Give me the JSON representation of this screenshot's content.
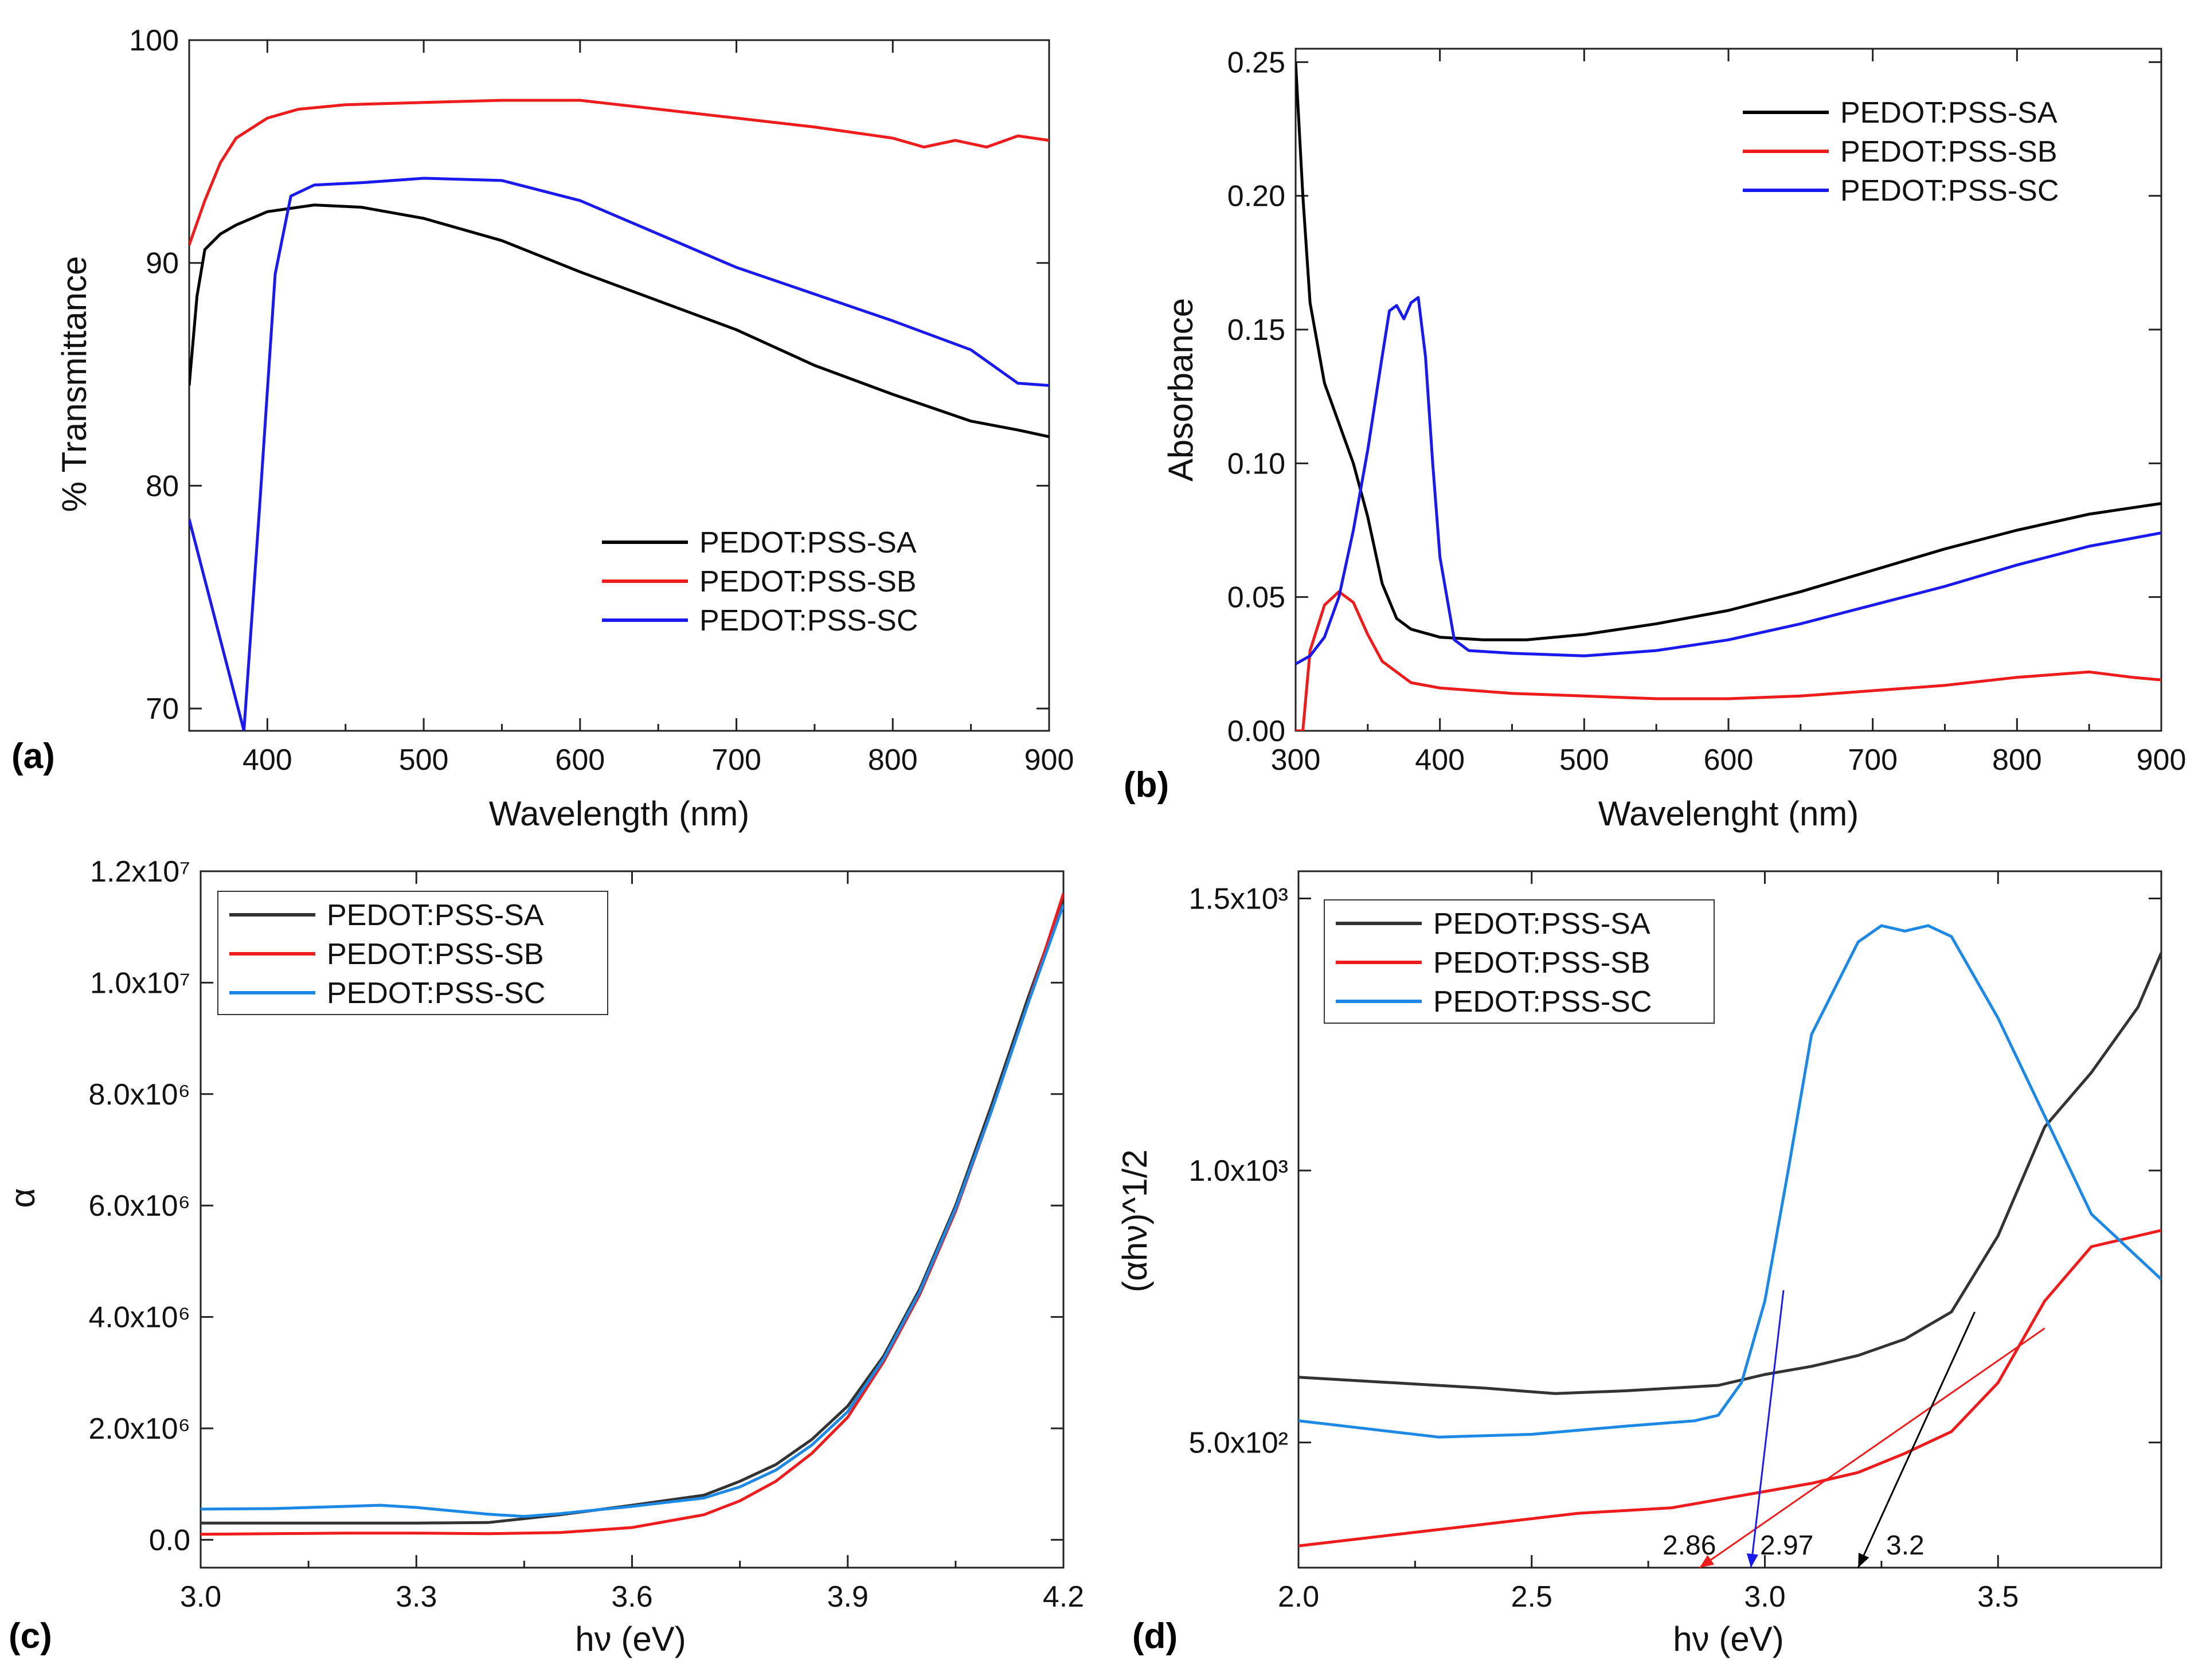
{
  "colors": {
    "SA": "#000000",
    "SB": "#ee1c1c",
    "SC": "#1a1aee",
    "SC_light": "#1e88e5"
  },
  "chart_data": [
    {
      "id": "a",
      "type": "line",
      "panel_label": "(a)",
      "xlabel": "Wavelength (nm)",
      "ylabel": "% Transmittance",
      "xlim": [
        350,
        900
      ],
      "ylim": [
        69,
        100
      ],
      "xticks": [
        "400",
        "500",
        "600",
        "700",
        "800",
        "900"
      ],
      "yticks": [
        "70",
        "80",
        "90",
        "100"
      ],
      "legend": [
        "PEDOT:PSS-SA",
        "PEDOT:PSS-SB",
        "PEDOT:PSS-SC"
      ],
      "series": [
        {
          "name": "PEDOT:PSS-SA",
          "color": "#000000",
          "x": [
            350,
            355,
            360,
            370,
            380,
            400,
            430,
            460,
            500,
            550,
            600,
            650,
            700,
            750,
            800,
            850,
            880,
            900
          ],
          "y": [
            84.5,
            88.5,
            90.6,
            91.3,
            91.7,
            92.3,
            92.6,
            92.5,
            92.0,
            91.0,
            89.6,
            88.3,
            87.0,
            85.4,
            84.1,
            82.9,
            82.5,
            82.2
          ]
        },
        {
          "name": "PEDOT:PSS-SB",
          "color": "#ee1c1c",
          "x": [
            350,
            360,
            370,
            380,
            400,
            420,
            450,
            500,
            550,
            600,
            650,
            700,
            750,
            800,
            820,
            840,
            860,
            880,
            900
          ],
          "y": [
            90.8,
            92.8,
            94.5,
            95.6,
            96.5,
            96.9,
            97.1,
            97.2,
            97.3,
            97.3,
            96.9,
            96.5,
            96.1,
            95.6,
            95.2,
            95.5,
            95.2,
            95.7,
            95.5
          ]
        },
        {
          "name": "PEDOT:PSS-SC",
          "color": "#1a1aee",
          "x": [
            350,
            385,
            395,
            405,
            415,
            430,
            460,
            500,
            550,
            600,
            650,
            700,
            750,
            800,
            850,
            880,
            900
          ],
          "y": [
            78.5,
            69.0,
            79.0,
            89.5,
            93.0,
            93.5,
            93.6,
            93.8,
            93.7,
            92.8,
            91.3,
            89.8,
            88.6,
            87.4,
            86.1,
            84.6,
            84.5
          ]
        }
      ]
    },
    {
      "id": "b",
      "type": "line",
      "panel_label": "(b)",
      "xlabel": "Wavelenght (nm)",
      "ylabel": "Absorbance",
      "xlim": [
        300,
        900
      ],
      "ylim": [
        0.0,
        0.255
      ],
      "xticks": [
        "300",
        "400",
        "500",
        "600",
        "700",
        "800",
        "900"
      ],
      "yticks": [
        "0.00",
        "0.05",
        "0.10",
        "0.15",
        "0.20",
        "0.25"
      ],
      "legend": [
        "PEDOT:PSS-SA",
        "PEDOT:PSS-SB",
        "PEDOT:PSS-SC"
      ],
      "series": [
        {
          "name": "PEDOT:PSS-SA",
          "color": "#000000",
          "x": [
            300,
            305,
            310,
            320,
            330,
            340,
            350,
            360,
            370,
            380,
            400,
            430,
            460,
            500,
            550,
            600,
            650,
            700,
            750,
            800,
            850,
            900
          ],
          "y": [
            0.25,
            0.2,
            0.16,
            0.13,
            0.115,
            0.1,
            0.08,
            0.055,
            0.042,
            0.038,
            0.035,
            0.034,
            0.034,
            0.036,
            0.04,
            0.045,
            0.052,
            0.06,
            0.068,
            0.075,
            0.081,
            0.085
          ]
        },
        {
          "name": "PEDOT:PSS-SB",
          "color": "#ee1c1c",
          "x": [
            300,
            305,
            310,
            320,
            330,
            340,
            350,
            360,
            380,
            400,
            450,
            500,
            550,
            600,
            650,
            700,
            750,
            800,
            850,
            880,
            900
          ],
          "y": [
            0.0,
            0.0,
            0.03,
            0.047,
            0.052,
            0.048,
            0.036,
            0.026,
            0.018,
            0.016,
            0.014,
            0.013,
            0.012,
            0.012,
            0.013,
            0.015,
            0.017,
            0.02,
            0.022,
            0.02,
            0.019
          ]
        },
        {
          "name": "PEDOT:PSS-SC",
          "color": "#1a1aee",
          "x": [
            300,
            310,
            320,
            330,
            340,
            350,
            360,
            365,
            370,
            375,
            380,
            385,
            390,
            395,
            400,
            410,
            420,
            450,
            500,
            550,
            600,
            650,
            700,
            750,
            800,
            850,
            900
          ],
          "y": [
            0.025,
            0.028,
            0.035,
            0.05,
            0.075,
            0.105,
            0.14,
            0.157,
            0.159,
            0.154,
            0.16,
            0.162,
            0.14,
            0.1,
            0.065,
            0.034,
            0.03,
            0.029,
            0.028,
            0.03,
            0.034,
            0.04,
            0.047,
            0.054,
            0.062,
            0.069,
            0.074
          ]
        }
      ]
    },
    {
      "id": "c",
      "type": "line",
      "panel_label": "(c)",
      "xlabel": "hν (eV)",
      "ylabel": "α",
      "xlim": [
        3.0,
        4.2
      ],
      "ylim": [
        -500000,
        12000000
      ],
      "xticks": [
        "3.0",
        "3.3",
        "3.6",
        "3.9",
        "4.2"
      ],
      "yticks": [
        "0.0",
        "2.0x10⁶",
        "4.0x10⁶",
        "6.0x10⁶",
        "8.0x10⁶",
        "1.0x10⁷",
        "1.2x10⁷"
      ],
      "legend": [
        "PEDOT:PSS-SA",
        "PEDOT:PSS-SB",
        "PEDOT:PSS-SC"
      ],
      "series": [
        {
          "name": "PEDOT:PSS-SA",
          "color": "#333333",
          "x": [
            3.0,
            3.1,
            3.2,
            3.3,
            3.4,
            3.5,
            3.6,
            3.7,
            3.75,
            3.8,
            3.85,
            3.9,
            3.95,
            4.0,
            4.05,
            4.1,
            4.15,
            4.2
          ],
          "y": [
            300000,
            300000,
            300000,
            300000,
            310000,
            450000,
            620000,
            800000,
            1050000,
            1350000,
            1800000,
            2400000,
            3300000,
            4500000,
            6000000,
            7800000,
            9700000,
            11500000
          ]
        },
        {
          "name": "PEDOT:PSS-SB",
          "color": "#ee1c1c",
          "x": [
            3.0,
            3.1,
            3.2,
            3.3,
            3.4,
            3.5,
            3.6,
            3.7,
            3.75,
            3.8,
            3.85,
            3.9,
            3.95,
            4.0,
            4.05,
            4.1,
            4.15,
            4.2
          ],
          "y": [
            100000,
            110000,
            120000,
            120000,
            110000,
            130000,
            220000,
            450000,
            700000,
            1050000,
            1550000,
            2200000,
            3200000,
            4400000,
            5900000,
            7700000,
            9600000,
            11600000
          ]
        },
        {
          "name": "PEDOT:PSS-SC",
          "color": "#1e88e5",
          "x": [
            3.0,
            3.1,
            3.2,
            3.25,
            3.3,
            3.4,
            3.45,
            3.5,
            3.6,
            3.7,
            3.75,
            3.8,
            3.85,
            3.9,
            3.95,
            4.0,
            4.05,
            4.1,
            4.15,
            4.2
          ],
          "y": [
            550000,
            560000,
            600000,
            620000,
            580000,
            460000,
            420000,
            470000,
            600000,
            750000,
            950000,
            1250000,
            1700000,
            2300000,
            3250000,
            4450000,
            5950000,
            7700000,
            9600000,
            11400000
          ]
        }
      ]
    },
    {
      "id": "d",
      "type": "line",
      "panel_label": "(d)",
      "xlabel": "hν (eV)",
      "ylabel": "(αhν)^1/2",
      "xlim": [
        2.0,
        3.85
      ],
      "ylim": [
        270,
        1550
      ],
      "xticks": [
        "2.0",
        "2.5",
        "3.0",
        "3.5"
      ],
      "yticks": [
        "5.0x10²",
        "1.0x10³",
        "1.5x10³"
      ],
      "legend": [
        "PEDOT:PSS-SA",
        "PEDOT:PSS-SB",
        "PEDOT:PSS-SC"
      ],
      "series": [
        {
          "name": "PEDOT:PSS-SA",
          "color": "#333333",
          "x": [
            2.0,
            2.2,
            2.4,
            2.55,
            2.7,
            2.9,
            3.0,
            3.1,
            3.2,
            3.3,
            3.4,
            3.5,
            3.6,
            3.7,
            3.8,
            3.85
          ],
          "y": [
            620,
            610,
            600,
            590,
            595,
            605,
            625,
            640,
            660,
            690,
            740,
            880,
            1080,
            1180,
            1300,
            1400
          ]
        },
        {
          "name": "PEDOT:PSS-SB",
          "color": "#ee1c1c",
          "x": [
            2.0,
            2.2,
            2.4,
            2.6,
            2.8,
            3.0,
            3.1,
            3.2,
            3.3,
            3.4,
            3.5,
            3.6,
            3.7,
            3.8,
            3.85
          ],
          "y": [
            310,
            330,
            350,
            370,
            380,
            410,
            425,
            445,
            480,
            520,
            610,
            760,
            860,
            880,
            890
          ]
        },
        {
          "name": "PEDOT:PSS-SC",
          "color": "#1e88e5",
          "x": [
            2.0,
            2.1,
            2.3,
            2.5,
            2.7,
            2.85,
            2.9,
            2.95,
            3.0,
            3.05,
            3.1,
            3.2,
            3.25,
            3.3,
            3.35,
            3.4,
            3.5,
            3.6,
            3.7,
            3.8,
            3.85
          ],
          "y": [
            540,
            530,
            510,
            515,
            530,
            540,
            550,
            610,
            760,
            1000,
            1250,
            1420,
            1450,
            1440,
            1450,
            1430,
            1280,
            1100,
            920,
            840,
            800
          ]
        }
      ],
      "tangents": [
        {
          "color": "#ee1c1c",
          "x": [
            3.6,
            2.86
          ],
          "y": [
            710,
            270
          ]
        },
        {
          "color": "#1a1aee",
          "x": [
            3.04,
            2.97
          ],
          "y": [
            780,
            270
          ]
        },
        {
          "color": "#000000",
          "x": [
            3.45,
            3.2
          ],
          "y": [
            740,
            270
          ]
        }
      ],
      "annotations": [
        "2.86",
        "2.97",
        "3.2"
      ]
    }
  ]
}
